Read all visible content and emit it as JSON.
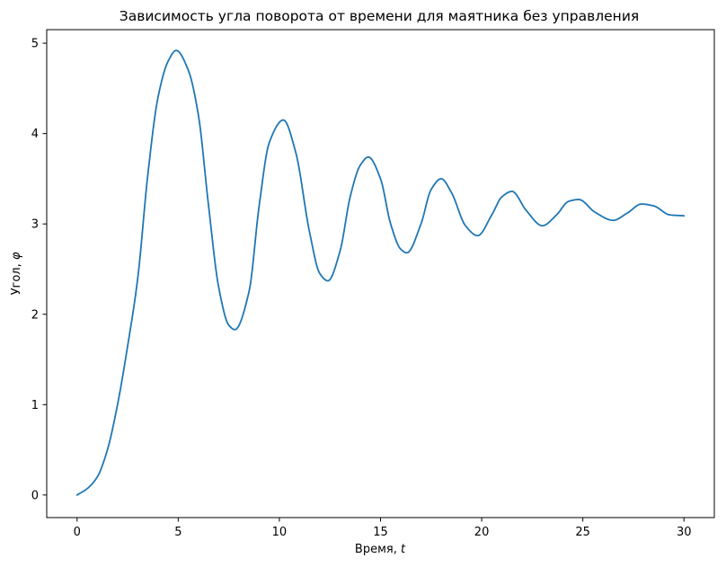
{
  "chart_data": {
    "type": "line",
    "title": "Зависимость угла поворота от времени для маятника без управления",
    "xlabel_text": "Время, ",
    "xlabel_var": "t",
    "ylabel_text": "Угол, ",
    "ylabel_var": "φ",
    "xlim": [
      -1.5,
      31.5
    ],
    "ylim": [
      -0.25,
      5.15
    ],
    "xticks": [
      0,
      5,
      10,
      15,
      20,
      25,
      30
    ],
    "yticks": [
      0,
      1,
      2,
      3,
      4,
      5
    ],
    "grid": false,
    "legend": "none",
    "line_color": "#1f77b4",
    "series": [
      {
        "x": [
          0,
          0.5,
          1.0,
          1.5,
          2.0,
          2.5,
          3.0,
          3.5,
          4.0,
          4.5,
          4.9,
          5.5,
          6.0,
          6.5,
          7.0,
          7.5,
          7.8,
          8.5,
          9.0,
          9.5,
          10.2,
          10.8,
          11.5,
          12.0,
          12.4,
          13.0,
          13.5,
          14.0,
          14.4,
          15.0,
          15.5,
          16.0,
          16.3,
          17.0,
          17.5,
          18.0,
          18.5,
          19.2,
          19.8,
          20.5,
          21.0,
          21.5,
          22.2,
          23.0,
          23.7,
          24.3,
          24.8,
          25.6,
          26.5,
          27.2,
          27.9,
          28.5,
          29.3,
          30.0
        ],
        "y": [
          0,
          0.07,
          0.2,
          0.5,
          1.0,
          1.65,
          2.4,
          3.55,
          4.4,
          4.8,
          4.92,
          4.7,
          4.2,
          3.2,
          2.3,
          1.88,
          1.83,
          2.25,
          3.2,
          3.9,
          4.15,
          3.8,
          2.9,
          2.45,
          2.37,
          2.7,
          3.3,
          3.65,
          3.74,
          3.5,
          3.0,
          2.72,
          2.68,
          3.0,
          3.38,
          3.5,
          3.35,
          2.98,
          2.87,
          3.1,
          3.3,
          3.36,
          3.15,
          2.98,
          3.1,
          3.25,
          3.27,
          3.13,
          3.04,
          3.12,
          3.22,
          3.2,
          3.1,
          3.09
        ]
      }
    ]
  }
}
